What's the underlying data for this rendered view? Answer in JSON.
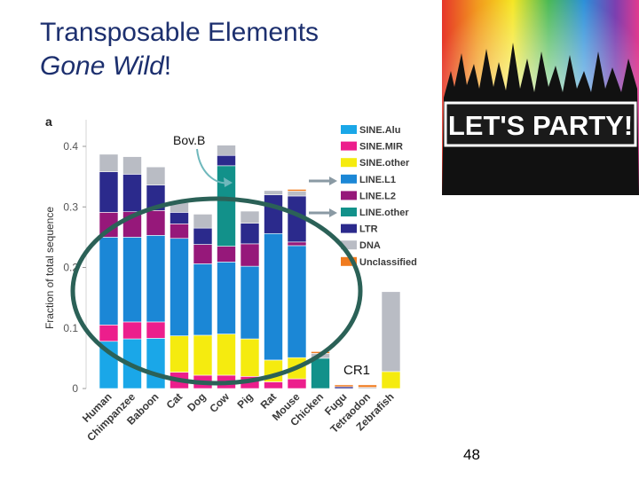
{
  "slide": {
    "title_line1": "Transposable Elements",
    "title_italic": "Gone Wild",
    "title_excl": "!",
    "page_number": "48"
  },
  "party_image": {
    "banner_text": "LET'S PARTY!"
  },
  "annotations": {
    "bovb": "Bov.B",
    "cr1": "CR1"
  },
  "colors": {
    "SINE.Alu": "#1aa7e8",
    "SINE.MIR": "#ec1e8c",
    "SINE.other": "#f5eb0f",
    "LINE.L1": "#1b87d6",
    "LINE.L2": "#96187a",
    "LINE.other": "#12918a",
    "LTR": "#2b2a8c",
    "DNA": "#b9bcc4",
    "Unclassified": "#f07b1f",
    "circle": "#2b6157",
    "title": "#1c2f6e"
  },
  "chart_data": {
    "type": "bar",
    "stacked": true,
    "panel_label": "a",
    "ylabel": "Fraction of total sequence",
    "ylim": [
      0,
      0.4
    ],
    "yticks": [
      "0",
      "0.1",
      "0.2",
      "0.3",
      "0.4"
    ],
    "categories": [
      "Human",
      "Chimpanzee",
      "Baboon",
      "Cat",
      "Dog",
      "Cow",
      "Pig",
      "Rat",
      "Mouse",
      "Chicken",
      "Fugu",
      "Tetraodon",
      "Zebrafish"
    ],
    "series": [
      {
        "name": "SINE.Alu",
        "values": [
          0.078,
          0.082,
          0.083,
          0,
          0,
          0,
          0,
          0,
          0,
          0,
          0,
          0,
          0
        ]
      },
      {
        "name": "SINE.MIR",
        "values": [
          0.027,
          0.028,
          0.027,
          0.027,
          0.022,
          0.022,
          0.02,
          0.011,
          0.016,
          0,
          0,
          0,
          0
        ]
      },
      {
        "name": "SINE.other",
        "values": [
          0,
          0,
          0,
          0.06,
          0.066,
          0.068,
          0.062,
          0.036,
          0.035,
          0,
          0,
          0,
          0.028
        ]
      },
      {
        "name": "LINE.L1",
        "values": [
          0.145,
          0.14,
          0.143,
          0.161,
          0.118,
          0.119,
          0.12,
          0.209,
          0.185,
          0,
          0,
          0,
          0
        ]
      },
      {
        "name": "LINE.L2",
        "values": [
          0.041,
          0.042,
          0.041,
          0.024,
          0.032,
          0.026,
          0.037,
          0,
          0.006,
          0,
          0,
          0,
          0
        ]
      },
      {
        "name": "LINE.other",
        "values": [
          0,
          0,
          0,
          0,
          0,
          0.133,
          0,
          0,
          0,
          0.05,
          0,
          0,
          0
        ]
      },
      {
        "name": "LTR",
        "values": [
          0.067,
          0.062,
          0.042,
          0.019,
          0.027,
          0.017,
          0.034,
          0.064,
          0.076,
          0,
          0.003,
          0,
          0
        ]
      },
      {
        "name": "DNA",
        "values": [
          0.029,
          0.029,
          0.03,
          0.016,
          0.023,
          0.017,
          0.02,
          0.007,
          0.008,
          0.008,
          0,
          0.002,
          0.132
        ]
      },
      {
        "name": "Unclassified",
        "values": [
          0,
          0,
          0,
          0,
          0,
          0,
          0,
          0,
          0.003,
          0.003,
          0.003,
          0.004,
          0
        ]
      }
    ]
  }
}
